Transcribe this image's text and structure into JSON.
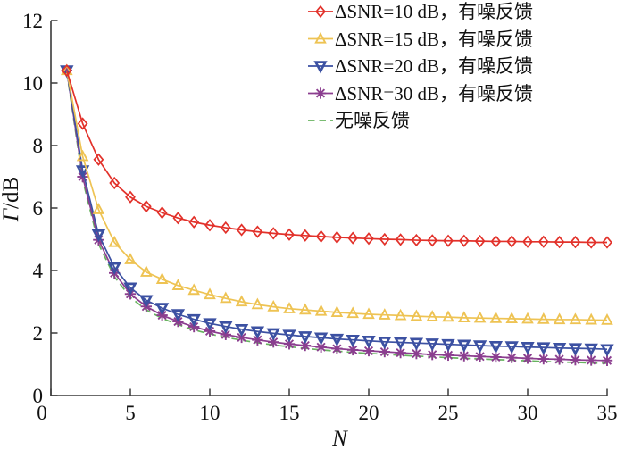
{
  "figure": {
    "background": "#ffffff",
    "text_color": "#111111",
    "axis_color": "#3a3a3a"
  },
  "chart_data": {
    "type": "line",
    "title": "",
    "xlabel": "N",
    "ylabel": "Γ/dB",
    "xlim": [
      0,
      35
    ],
    "ylim": [
      0,
      12
    ],
    "xticks": [
      0,
      5,
      10,
      15,
      20,
      25,
      30,
      35
    ],
    "yticks": [
      0,
      2,
      4,
      6,
      8,
      10,
      12
    ],
    "grid": false,
    "legend_position": "top-right-inside",
    "x": [
      1,
      2,
      3,
      4,
      5,
      6,
      7,
      8,
      9,
      10,
      11,
      12,
      13,
      14,
      15,
      16,
      17,
      18,
      19,
      20,
      21,
      22,
      23,
      24,
      25,
      26,
      27,
      28,
      29,
      30,
      31,
      32,
      33,
      34,
      35
    ],
    "series": [
      {
        "name": "ΔSNR=10 dB，有噪反馈",
        "color": "#e2312a",
        "marker": "diamond",
        "line": "solid",
        "values": [
          10.4,
          8.7,
          7.55,
          6.8,
          6.35,
          6.05,
          5.85,
          5.68,
          5.55,
          5.45,
          5.37,
          5.3,
          5.24,
          5.19,
          5.15,
          5.12,
          5.09,
          5.06,
          5.04,
          5.02,
          5.0,
          4.99,
          4.97,
          4.96,
          4.95,
          4.95,
          4.94,
          4.93,
          4.93,
          4.92,
          4.92,
          4.91,
          4.91,
          4.9,
          4.9
        ]
      },
      {
        "name": "ΔSNR=15 dB，有噪反馈",
        "color": "#eec353",
        "marker": "triangle-up",
        "line": "solid",
        "values": [
          10.4,
          7.65,
          5.95,
          4.9,
          4.35,
          3.95,
          3.72,
          3.52,
          3.37,
          3.23,
          3.11,
          3.0,
          2.91,
          2.84,
          2.78,
          2.74,
          2.7,
          2.66,
          2.63,
          2.6,
          2.58,
          2.56,
          2.54,
          2.52,
          2.51,
          2.49,
          2.48,
          2.47,
          2.46,
          2.45,
          2.44,
          2.43,
          2.43,
          2.42,
          2.41
        ]
      },
      {
        "name": "ΔSNR=20 dB，有噪反馈",
        "color": "#3c51a2",
        "marker": "triangle-down",
        "line": "solid",
        "values": [
          10.4,
          7.2,
          5.15,
          4.1,
          3.45,
          3.05,
          2.8,
          2.6,
          2.44,
          2.31,
          2.21,
          2.12,
          2.05,
          1.99,
          1.94,
          1.89,
          1.85,
          1.81,
          1.78,
          1.75,
          1.72,
          1.7,
          1.68,
          1.66,
          1.64,
          1.62,
          1.6,
          1.58,
          1.57,
          1.55,
          1.54,
          1.52,
          1.51,
          1.5,
          1.48
        ]
      },
      {
        "name": "ΔSNR=30 dB，有噪反馈",
        "color": "#8b3e8f",
        "marker": "asterisk",
        "line": "solid",
        "values": [
          10.4,
          7.0,
          4.98,
          3.92,
          3.25,
          2.85,
          2.57,
          2.37,
          2.2,
          2.06,
          1.95,
          1.86,
          1.78,
          1.71,
          1.65,
          1.6,
          1.55,
          1.5,
          1.46,
          1.43,
          1.4,
          1.37,
          1.34,
          1.31,
          1.29,
          1.27,
          1.25,
          1.23,
          1.21,
          1.19,
          1.17,
          1.16,
          1.14,
          1.13,
          1.12
        ]
      },
      {
        "name": "无噪反馈",
        "color": "#67b35f",
        "marker": "none",
        "line": "dashed",
        "values": [
          10.35,
          6.9,
          4.85,
          3.8,
          3.14,
          2.74,
          2.47,
          2.27,
          2.1,
          1.97,
          1.86,
          1.77,
          1.69,
          1.62,
          1.56,
          1.51,
          1.46,
          1.42,
          1.38,
          1.35,
          1.32,
          1.29,
          1.26,
          1.24,
          1.21,
          1.19,
          1.17,
          1.15,
          1.13,
          1.11,
          1.09,
          1.07,
          1.06,
          1.04,
          1.03
        ]
      }
    ]
  }
}
